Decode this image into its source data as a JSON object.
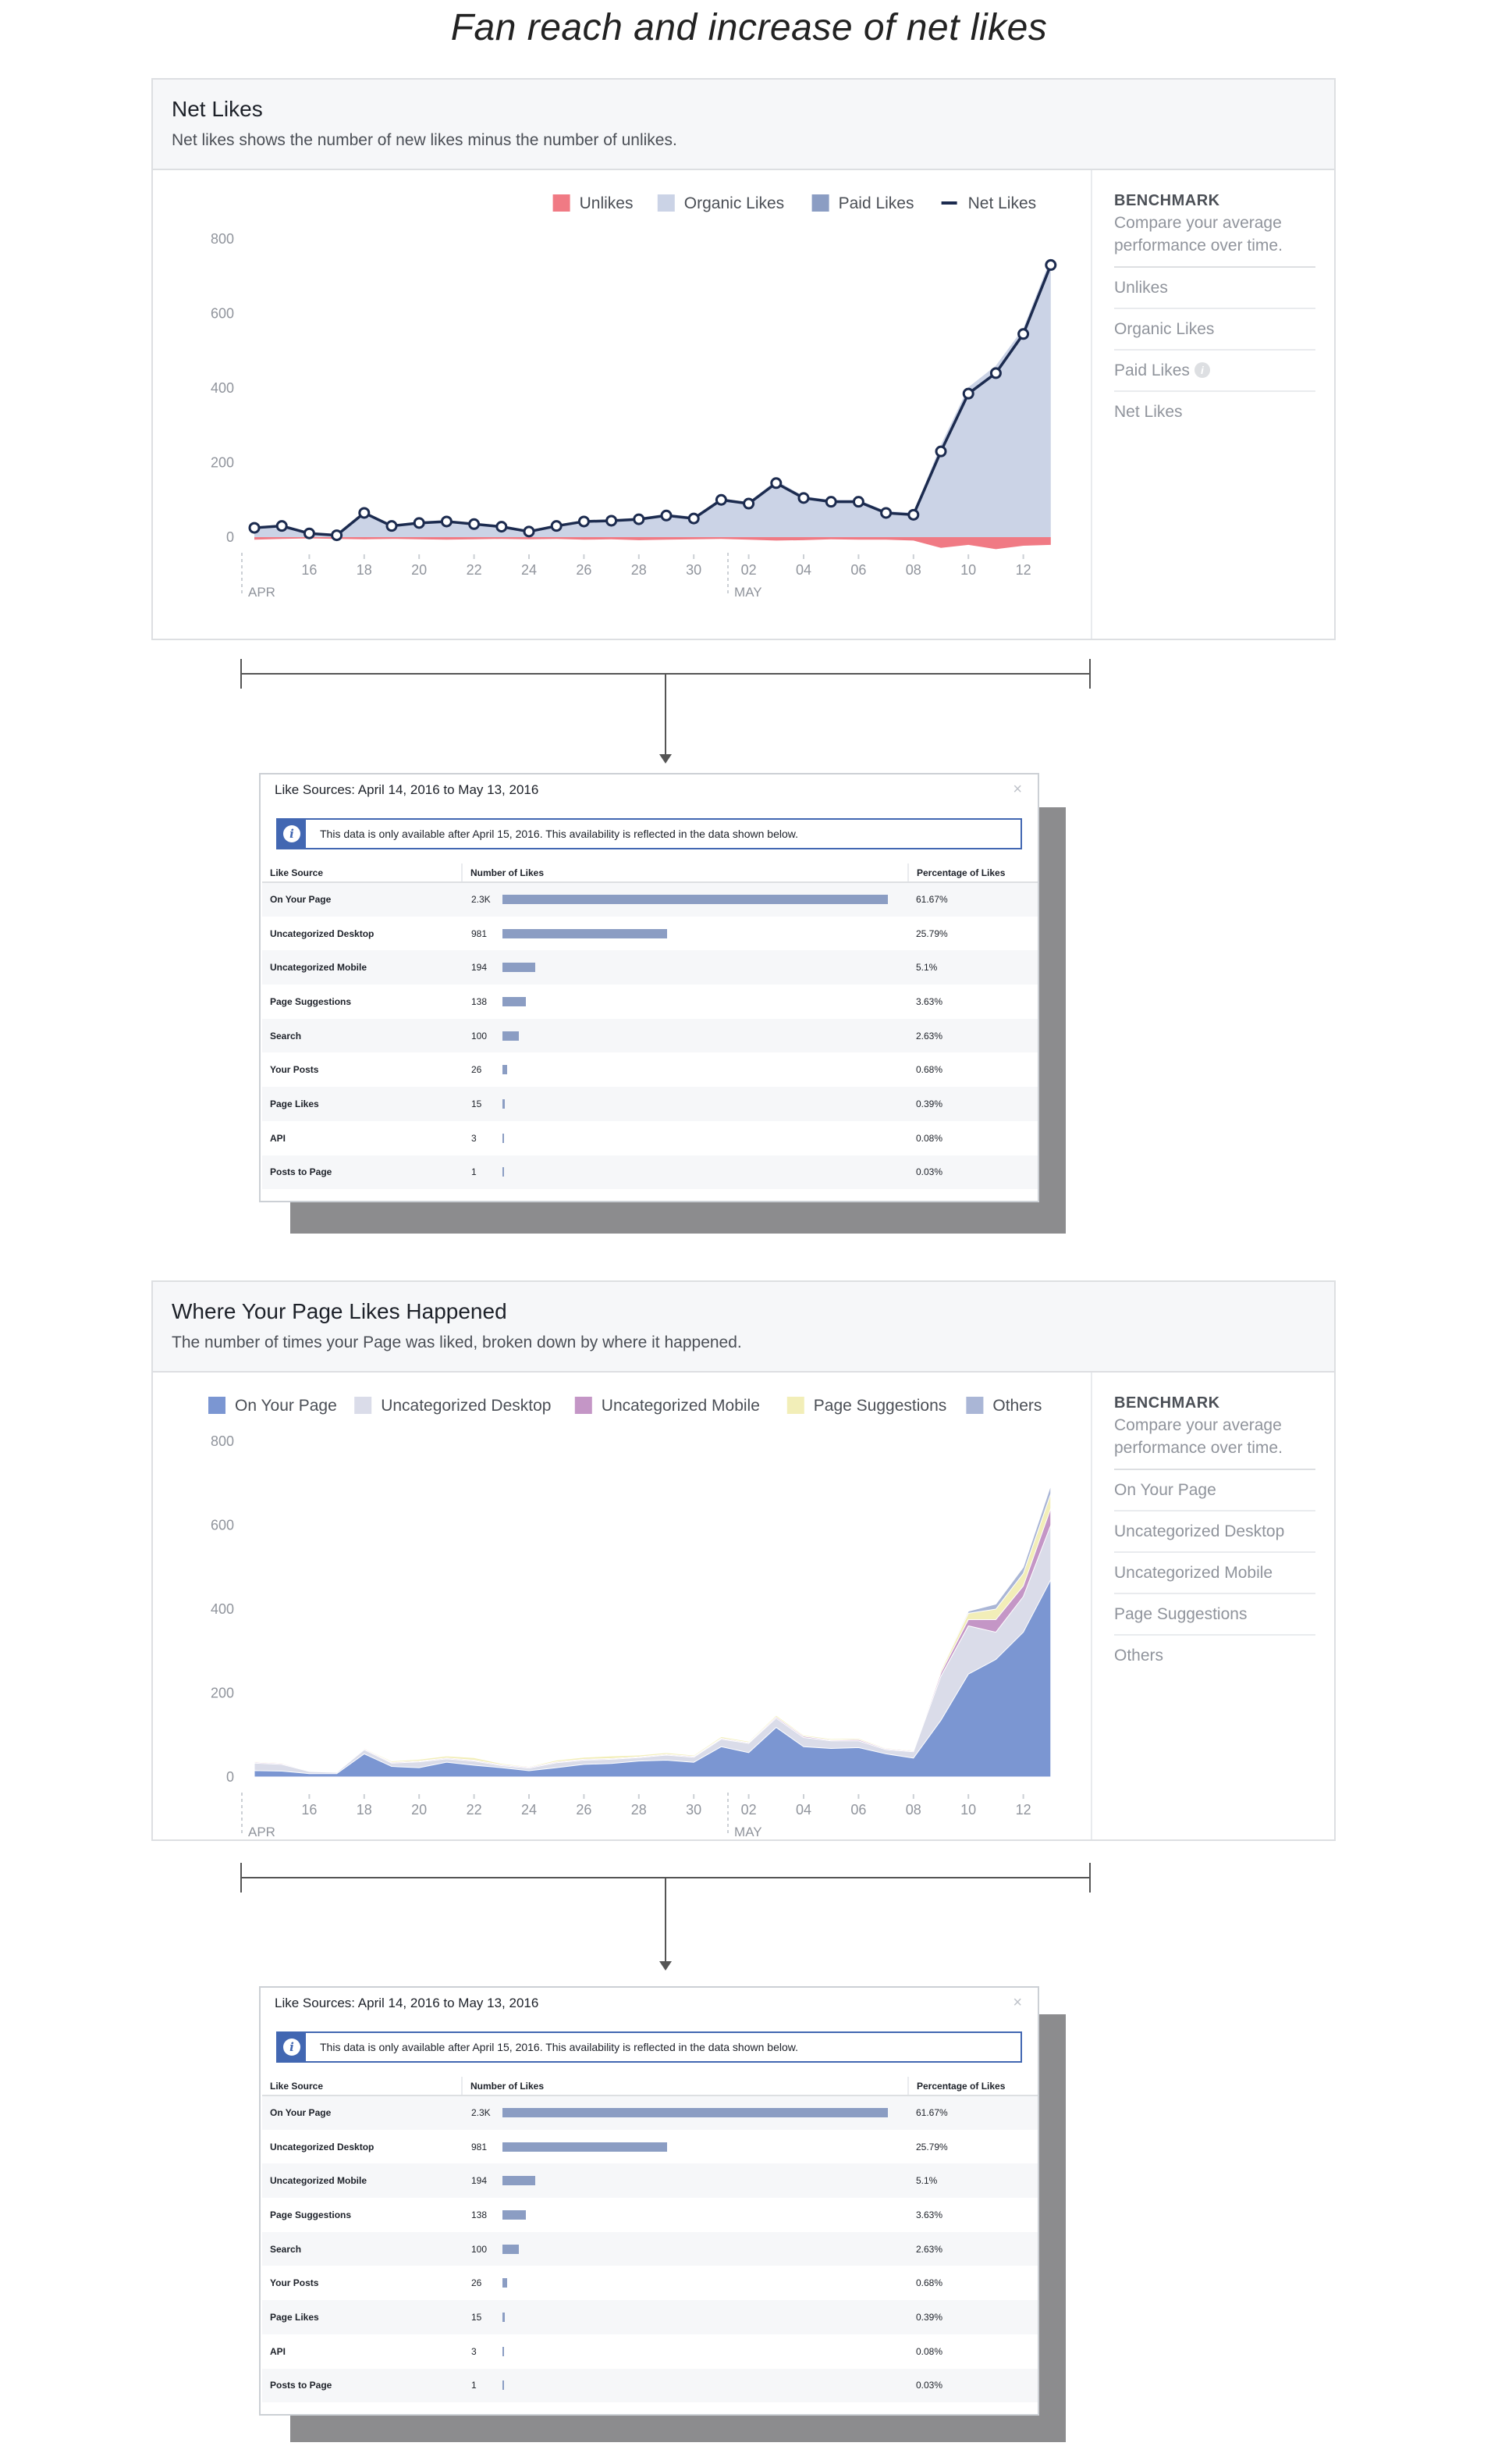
{
  "page_title": "Fan reach and increase of net likes",
  "net_likes_card": {
    "title": "Net Likes",
    "subtitle": "Net likes shows the number of new likes minus the number of unlikes.",
    "legend": [
      {
        "label": "Unlikes",
        "color": "#f07a84"
      },
      {
        "label": "Organic Likes",
        "color": "#cbd3e6"
      },
      {
        "label": "Paid Likes",
        "color": "#8b9dc3"
      },
      {
        "label": "Net Likes",
        "color": "#1c2b4f"
      }
    ],
    "benchmark": {
      "title": "BENCHMARK",
      "description": "Compare your average performance over time.",
      "items": [
        "Unlikes",
        "Organic Likes",
        "Paid Likes",
        "Net Likes"
      ]
    }
  },
  "page_likes_card": {
    "title": "Where Your Page Likes Happened",
    "subtitle": "The number of times your Page was liked, broken down by where it happened.",
    "legend": [
      {
        "label": "On Your Page",
        "color": "#7b96d2"
      },
      {
        "label": "Uncategorized Desktop",
        "color": "#dadce9"
      },
      {
        "label": "Uncategorized Mobile",
        "color": "#c496c6"
      },
      {
        "label": "Page Suggestions",
        "color": "#f2eeb8"
      },
      {
        "label": "Others",
        "color": "#aab6d6"
      }
    ],
    "benchmark": {
      "title": "BENCHMARK",
      "description": "Compare your average performance over time.",
      "items": [
        "On Your Page",
        "Uncategorized Desktop",
        "Uncategorized Mobile",
        "Page Suggestions",
        "Others"
      ]
    }
  },
  "chart_data": [
    {
      "type": "line",
      "title": "Net Likes",
      "ylim": [
        0,
        800
      ],
      "y_ticks": [
        "0",
        "200",
        "400",
        "600",
        "800"
      ],
      "x_ticks": [
        "16",
        "18",
        "20",
        "22",
        "24",
        "26",
        "28",
        "30",
        "02",
        "04",
        "06",
        "08",
        "10",
        "12"
      ],
      "month_labels": [
        "APR",
        "MAY"
      ],
      "x": [
        "Apr 14",
        "Apr 15",
        "Apr 16",
        "Apr 17",
        "Apr 18",
        "Apr 19",
        "Apr 20",
        "Apr 21",
        "Apr 22",
        "Apr 23",
        "Apr 24",
        "Apr 25",
        "Apr 26",
        "Apr 27",
        "Apr 28",
        "Apr 29",
        "Apr 30",
        "May 01",
        "May 02",
        "May 03",
        "May 04",
        "May 05",
        "May 06",
        "May 07",
        "May 08",
        "May 09",
        "May 10",
        "May 11",
        "May 12",
        "May 13"
      ],
      "series": [
        {
          "name": "Net Likes",
          "values": [
            25,
            30,
            10,
            5,
            65,
            30,
            38,
            42,
            35,
            28,
            15,
            30,
            42,
            44,
            48,
            58,
            50,
            100,
            90,
            145,
            105,
            95,
            95,
            65,
            60,
            230,
            385,
            440,
            545,
            730
          ]
        },
        {
          "name": "Organic Likes",
          "values": [
            28,
            34,
            12,
            7,
            68,
            33,
            42,
            46,
            38,
            32,
            18,
            33,
            45,
            48,
            52,
            62,
            55,
            104,
            94,
            152,
            110,
            100,
            100,
            70,
            66,
            248,
            402,
            460,
            560,
            748
          ]
        },
        {
          "name": "Paid Likes",
          "values": [
            0,
            0,
            0,
            0,
            0,
            0,
            0,
            0,
            0,
            0,
            0,
            0,
            0,
            0,
            0,
            0,
            0,
            0,
            0,
            0,
            0,
            0,
            0,
            0,
            0,
            0,
            0,
            0,
            0,
            0
          ]
        },
        {
          "name": "Unlikes",
          "values": [
            -6,
            -4,
            -3,
            -4,
            -5,
            -4,
            -5,
            -6,
            -5,
            -4,
            -5,
            -4,
            -6,
            -5,
            -7,
            -6,
            -5,
            -4,
            -6,
            -8,
            -7,
            -5,
            -6,
            -6,
            -8,
            -25,
            -18,
            -28,
            -20,
            -18
          ]
        }
      ]
    },
    {
      "type": "area",
      "title": "Where Your Page Likes Happened",
      "ylim": [
        0,
        800
      ],
      "y_ticks": [
        "0",
        "200",
        "400",
        "600",
        "800"
      ],
      "x_ticks": [
        "16",
        "18",
        "20",
        "22",
        "24",
        "26",
        "28",
        "30",
        "02",
        "04",
        "06",
        "08",
        "10",
        "12"
      ],
      "month_labels": [
        "APR",
        "MAY"
      ],
      "x": [
        "Apr 14",
        "Apr 15",
        "Apr 16",
        "Apr 17",
        "Apr 18",
        "Apr 19",
        "Apr 20",
        "Apr 21",
        "Apr 22",
        "Apr 23",
        "Apr 24",
        "Apr 25",
        "Apr 26",
        "Apr 27",
        "Apr 28",
        "Apr 29",
        "Apr 30",
        "May 01",
        "May 02",
        "May 03",
        "May 04",
        "May 05",
        "May 06",
        "May 07",
        "May 08",
        "May 09",
        "May 10",
        "May 11",
        "May 12",
        "May 13"
      ],
      "series": [
        {
          "name": "On Your Page",
          "values": [
            15,
            14,
            8,
            8,
            55,
            25,
            22,
            35,
            28,
            22,
            15,
            22,
            30,
            32,
            38,
            40,
            35,
            72,
            58,
            118,
            72,
            68,
            70,
            55,
            45,
            135,
            245,
            280,
            345,
            470
          ]
        },
        {
          "name": "Uncategorized Desktop",
          "values": [
            18,
            16,
            5,
            3,
            10,
            8,
            14,
            8,
            10,
            5,
            6,
            12,
            10,
            10,
            8,
            12,
            12,
            18,
            22,
            22,
            22,
            18,
            16,
            10,
            15,
            105,
            115,
            65,
            85,
            130
          ]
        },
        {
          "name": "Uncategorized Mobile",
          "values": [
            2,
            2,
            1,
            1,
            2,
            2,
            2,
            2,
            2,
            2,
            2,
            2,
            2,
            2,
            2,
            2,
            2,
            2,
            2,
            3,
            3,
            2,
            3,
            2,
            2,
            8,
            15,
            30,
            25,
            40
          ]
        },
        {
          "name": "Page Suggestions",
          "values": [
            2,
            2,
            1,
            1,
            2,
            3,
            4,
            5,
            6,
            3,
            2,
            4,
            5,
            6,
            4,
            4,
            3,
            4,
            3,
            4,
            3,
            3,
            3,
            2,
            2,
            6,
            15,
            25,
            30,
            35
          ]
        },
        {
          "name": "Others",
          "values": [
            1,
            1,
            1,
            1,
            1,
            1,
            1,
            1,
            1,
            1,
            1,
            1,
            1,
            1,
            1,
            1,
            1,
            1,
            1,
            1,
            1,
            1,
            1,
            1,
            1,
            3,
            5,
            12,
            15,
            20
          ]
        }
      ]
    },
    {
      "type": "table",
      "title": "Like Sources: April 14, 2016 to May 13, 2016",
      "columns": [
        "Like Source",
        "Number of Likes",
        "Percentage of Likes"
      ],
      "rows": [
        {
          "source": "On Your Page",
          "likes": "2.3K",
          "pct": "61.67%",
          "value": 2300
        },
        {
          "source": "Uncategorized Desktop",
          "likes": "981",
          "pct": "25.79%",
          "value": 981
        },
        {
          "source": "Uncategorized Mobile",
          "likes": "194",
          "pct": "5.1%",
          "value": 194
        },
        {
          "source": "Page Suggestions",
          "likes": "138",
          "pct": "3.63%",
          "value": 138
        },
        {
          "source": "Search",
          "likes": "100",
          "pct": "2.63%",
          "value": 100
        },
        {
          "source": "Your Posts",
          "likes": "26",
          "pct": "0.68%",
          "value": 26
        },
        {
          "source": "Page Likes",
          "likes": "15",
          "pct": "0.39%",
          "value": 15
        },
        {
          "source": "API",
          "likes": "3",
          "pct": "0.08%",
          "value": 3
        },
        {
          "source": "Posts to Page",
          "likes": "1",
          "pct": "0.03%",
          "value": 1
        }
      ]
    }
  ],
  "popup": {
    "title": "Like Sources: April 14, 2016 to May 13, 2016",
    "close_icon": "×",
    "info_icon": "i",
    "note": "This data is only available after April 15, 2016. This availability is reflected in the data shown below.",
    "col_source": "Like Source",
    "col_likes": "Number of Likes",
    "col_pct": "Percentage of Likes"
  },
  "icons": {
    "info": "info-icon",
    "close": "close-icon",
    "arrow": "arrow-down-icon"
  }
}
